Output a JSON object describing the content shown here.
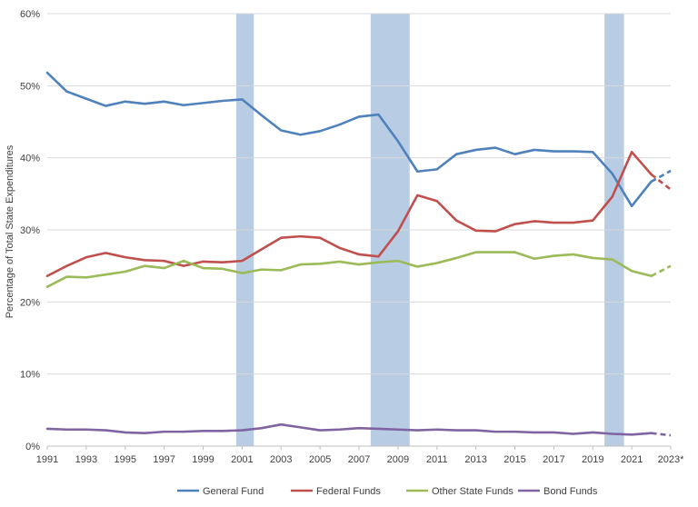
{
  "chart_data": {
    "type": "line",
    "title": "",
    "xlabel": "",
    "ylabel": "Percentage of Total State Expenditures",
    "x": [
      1991,
      1992,
      1993,
      1994,
      1995,
      1996,
      1997,
      1998,
      1999,
      2000,
      2001,
      2002,
      2003,
      2004,
      2005,
      2006,
      2007,
      2008,
      2009,
      2010,
      2011,
      2012,
      2013,
      2014,
      2015,
      2016,
      2017,
      2018,
      2019,
      2020,
      2021,
      2022,
      2023
    ],
    "x_tick_labels": [
      "1991",
      "1993",
      "1995",
      "1997",
      "1999",
      "2001",
      "2003",
      "2005",
      "2007",
      "2009",
      "2011",
      "2013",
      "2015",
      "2017",
      "2019",
      "2021",
      "2023*"
    ],
    "x_tick_values": [
      1991,
      1993,
      1995,
      1997,
      1999,
      2001,
      2003,
      2005,
      2007,
      2009,
      2011,
      2013,
      2015,
      2017,
      2019,
      2021,
      2023
    ],
    "y_ticks": [
      "0%",
      "10%",
      "20%",
      "30%",
      "40%",
      "50%",
      "60%"
    ],
    "ylim": [
      0,
      60
    ],
    "xlim": [
      1991,
      2023
    ],
    "grid": "horizontal",
    "legend_position": "bottom",
    "projected_from": 2022,
    "recession_bands": [
      [
        2000.7,
        2001.6
      ],
      [
        2007.6,
        2009.6
      ],
      [
        2019.6,
        2020.6
      ]
    ],
    "band_color": "#b8cce4",
    "series": [
      {
        "name": "General Fund",
        "color": "#4f81bd",
        "values": [
          51.8,
          49.2,
          48.2,
          47.2,
          47.8,
          47.5,
          47.8,
          47.3,
          47.6,
          47.9,
          48.1,
          45.9,
          43.8,
          43.2,
          43.7,
          44.6,
          45.7,
          46.0,
          42.3,
          38.1,
          38.4,
          40.5,
          41.1,
          41.4,
          40.5,
          41.1,
          40.9,
          40.9,
          40.8,
          37.8,
          33.3,
          36.7,
          38.2
        ]
      },
      {
        "name": "Federal Funds",
        "color": "#c0504d",
        "values": [
          23.6,
          25.0,
          26.2,
          26.8,
          26.2,
          25.8,
          25.7,
          25.0,
          25.6,
          25.5,
          25.7,
          27.3,
          28.9,
          29.1,
          28.9,
          27.5,
          26.6,
          26.3,
          29.8,
          34.8,
          34.0,
          31.3,
          29.9,
          29.8,
          30.8,
          31.2,
          31.0,
          31.0,
          31.3,
          34.6,
          40.8,
          37.7,
          35.6
        ]
      },
      {
        "name": "Other State Funds",
        "color": "#9bbb59",
        "values": [
          22.1,
          23.5,
          23.4,
          23.8,
          24.2,
          25.0,
          24.7,
          25.7,
          24.7,
          24.6,
          24.0,
          24.5,
          24.4,
          25.2,
          25.3,
          25.6,
          25.2,
          25.5,
          25.7,
          24.9,
          25.4,
          26.1,
          26.9,
          26.9,
          26.9,
          26.0,
          26.4,
          26.6,
          26.1,
          25.9,
          24.3,
          23.6,
          25.0
        ]
      },
      {
        "name": "Bond Funds",
        "color": "#8064a2",
        "values": [
          2.4,
          2.3,
          2.3,
          2.2,
          1.9,
          1.8,
          2.0,
          2.0,
          2.1,
          2.1,
          2.2,
          2.5,
          3.0,
          2.6,
          2.2,
          2.3,
          2.5,
          2.4,
          2.3,
          2.2,
          2.3,
          2.2,
          2.2,
          2.0,
          2.0,
          1.9,
          1.9,
          1.7,
          1.9,
          1.7,
          1.6,
          1.8,
          1.5
        ]
      }
    ]
  }
}
